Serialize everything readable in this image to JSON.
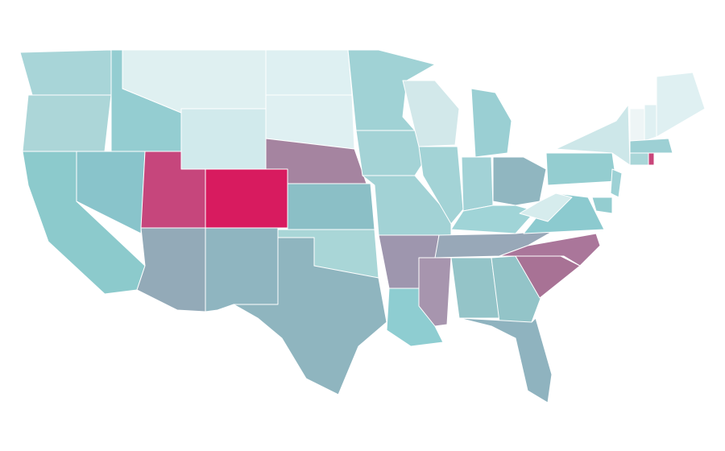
{
  "map": {
    "fills": [
      "#a8d5d8",
      "#acd6d8",
      "#8ccacc",
      "#89c4cb",
      "#94cdd1",
      "#dff0f1",
      "#d1eaec",
      "#c6467c",
      "#d81b5f",
      "#93aab8",
      "#8fb5c0",
      "#def0f2",
      "#dff0f2",
      "#a584a0",
      "#8bbfc6",
      "#a9d6d7",
      "#8fb5bf",
      "#a0d2d5",
      "#a4d3d6",
      "#a2d2d5",
      "#9e96ae",
      "#8ecdd1",
      "#d2e8ea",
      "#a3d3d6",
      "#9acfd3",
      "#a2d2d6",
      "#90b6c0",
      "#a0d4d7",
      "#98a8b8",
      "#a795ae",
      "#94c4c8",
      "#93c4c8",
      "#8fb3bf",
      "#a87295",
      "#aa769a",
      "#8ccacf",
      "#d6eced",
      "#94cdd0",
      "#cde7e9",
      "#eef5f6",
      "#dff0f2",
      "#dff0f2",
      "#9dd0d4",
      "#a9d6d8",
      "#c8457a",
      "#9dd1d5",
      "#94cdd0"
    ]
  }
}
